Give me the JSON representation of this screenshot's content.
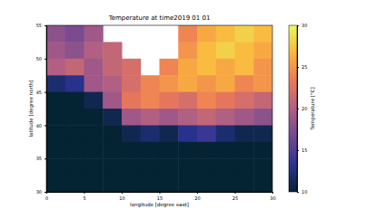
{
  "chart_data": {
    "type": "heatmap",
    "title": "Temperature at time2019 01 01",
    "x_label": "longitude [degree east]",
    "y_label": "latitude [degree north]",
    "colorbar_label": "Temperature [°C]",
    "x": [
      1.25,
      3.75,
      6.25,
      8.75,
      11.25,
      13.75,
      16.25,
      18.75,
      21.25,
      23.75,
      26.25,
      28.75
    ],
    "y": [
      53.75,
      51.25,
      48.75,
      46.25,
      43.75,
      41.25,
      38.75,
      36.25,
      33.75,
      31.25
    ],
    "cells": [
      [
        18,
        17,
        19,
        null,
        null,
        null,
        null,
        24,
        26,
        27,
        28,
        27
      ],
      [
        19,
        18,
        20,
        21,
        null,
        null,
        null,
        25,
        27,
        28,
        27,
        26
      ],
      [
        20,
        21,
        19,
        21,
        22,
        null,
        24,
        26,
        27,
        26,
        27,
        25
      ],
      [
        12,
        13,
        19,
        20,
        22,
        24,
        25,
        26,
        25,
        26,
        24,
        25
      ],
      [
        10,
        10,
        11,
        19,
        23,
        24,
        23,
        22,
        24,
        23,
        22,
        21
      ],
      [
        10,
        10,
        10,
        11,
        19,
        20,
        19,
        20,
        21,
        20,
        19,
        18
      ],
      [
        10,
        10,
        10,
        10,
        11,
        12,
        11,
        13,
        14,
        12,
        11,
        11
      ],
      [
        10,
        10,
        10,
        10,
        10,
        10,
        10,
        10,
        10,
        10,
        10,
        10
      ],
      [
        10,
        10,
        10,
        10,
        10,
        10,
        10,
        10,
        10,
        10,
        10,
        10
      ],
      [
        10,
        10,
        10,
        10,
        10,
        10,
        10,
        10,
        10,
        10,
        10,
        10
      ]
    ],
    "xlim": [
      0,
      30
    ],
    "xticks": [
      0,
      5,
      10,
      15,
      20,
      25,
      30
    ],
    "ylim": [
      30,
      55
    ],
    "yticks": [
      30,
      35,
      40,
      45,
      50,
      55
    ],
    "colorbar_range": [
      10,
      30
    ],
    "colorbar_ticks": [
      10,
      15,
      20,
      25,
      30
    ]
  }
}
